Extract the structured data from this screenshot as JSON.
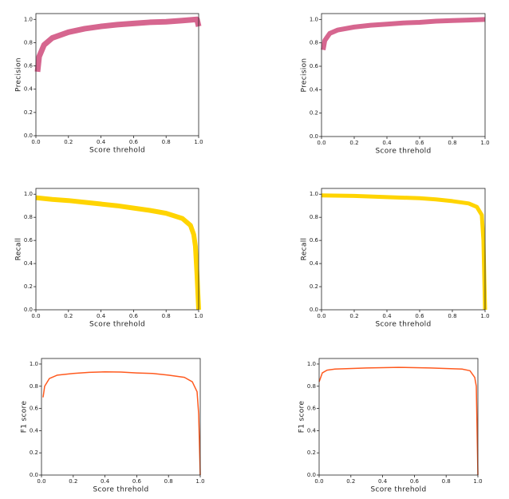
{
  "chart_data": [
    {
      "type": "line",
      "xlabel": "Score threhold",
      "ylabel": "Precision",
      "color": "#d6668f",
      "x": [
        0.01,
        0.02,
        0.05,
        0.1,
        0.2,
        0.3,
        0.4,
        0.5,
        0.6,
        0.7,
        0.8,
        0.9,
        0.99,
        1.0
      ],
      "values": [
        0.55,
        0.68,
        0.78,
        0.84,
        0.89,
        0.92,
        0.94,
        0.955,
        0.965,
        0.975,
        0.98,
        0.99,
        1.0,
        0.94
      ],
      "xlim": [
        0,
        1
      ],
      "ylim": [
        0,
        1.05
      ],
      "xticks": [
        {
          "value": 0,
          "label": "0.0"
        },
        0.2,
        0.4,
        0.6,
        0.8,
        {
          "value": 1,
          "label": "1.0"
        }
      ],
      "yticks": [
        {
          "value": 0,
          "label": "0.0"
        },
        0.2,
        0.4,
        0.6,
        0.8,
        {
          "value": 1,
          "label": "1.0"
        }
      ]
    },
    {
      "type": "line",
      "xlabel": "Score threhold",
      "ylabel": "Precision",
      "color": "#d6668f",
      "x": [
        0.01,
        0.02,
        0.05,
        0.1,
        0.2,
        0.3,
        0.4,
        0.5,
        0.6,
        0.7,
        0.8,
        0.9,
        1.0
      ],
      "values": [
        0.74,
        0.82,
        0.88,
        0.91,
        0.935,
        0.95,
        0.96,
        0.97,
        0.975,
        0.985,
        0.99,
        0.995,
        1.0
      ],
      "xlim": [
        0,
        1
      ],
      "ylim": [
        0,
        1.05
      ],
      "xticks": [
        {
          "value": 0,
          "label": "0.0"
        },
        0.2,
        0.4,
        0.6,
        0.8,
        {
          "value": 1,
          "label": "1.0"
        }
      ],
      "yticks": [
        {
          "value": 0,
          "label": "0.0"
        },
        0.2,
        0.4,
        0.6,
        0.8,
        {
          "value": 1,
          "label": "1.0"
        }
      ]
    },
    {
      "type": "line",
      "xlabel": "Score threhold",
      "ylabel": "Recall",
      "color": "#ffd400",
      "x": [
        0,
        0.1,
        0.2,
        0.3,
        0.4,
        0.5,
        0.6,
        0.7,
        0.8,
        0.9,
        0.95,
        0.97,
        0.98,
        0.99,
        1.0
      ],
      "values": [
        0.97,
        0.955,
        0.945,
        0.93,
        0.915,
        0.9,
        0.88,
        0.86,
        0.835,
        0.79,
        0.73,
        0.65,
        0.55,
        0.3,
        0
      ],
      "xlim": [
        0,
        1
      ],
      "ylim": [
        0,
        1.05
      ],
      "xticks": [
        {
          "value": 0,
          "label": "0.0"
        },
        0.2,
        0.4,
        0.6,
        0.8,
        {
          "value": 1,
          "label": "1.0"
        }
      ],
      "yticks": [
        {
          "value": 0,
          "label": "0.0"
        },
        0.2,
        0.4,
        0.6,
        0.8,
        {
          "value": 1,
          "label": "1.0"
        }
      ]
    },
    {
      "type": "line",
      "xlabel": "Score threhold",
      "ylabel": "Recall",
      "color": "#ffd400",
      "x": [
        0,
        0.2,
        0.4,
        0.6,
        0.7,
        0.8,
        0.9,
        0.95,
        0.98,
        0.99,
        1.0
      ],
      "values": [
        0.99,
        0.985,
        0.975,
        0.965,
        0.955,
        0.94,
        0.92,
        0.89,
        0.82,
        0.6,
        0
      ],
      "xlim": [
        0,
        1
      ],
      "ylim": [
        0,
        1.05
      ],
      "xticks": [
        {
          "value": 0,
          "label": "0.0"
        },
        0.2,
        0.4,
        0.6,
        0.8,
        {
          "value": 1,
          "label": "1.0"
        }
      ],
      "yticks": [
        {
          "value": 0,
          "label": "0.0"
        },
        0.2,
        0.4,
        0.6,
        0.8,
        {
          "value": 1,
          "label": "1.0"
        }
      ]
    },
    {
      "type": "line",
      "xlabel": "Score threhold",
      "ylabel": "F1 score",
      "color": "#ff5a1f",
      "x": [
        0.01,
        0.02,
        0.05,
        0.1,
        0.2,
        0.3,
        0.4,
        0.5,
        0.6,
        0.7,
        0.8,
        0.9,
        0.95,
        0.98,
        0.99,
        1.0
      ],
      "values": [
        0.7,
        0.8,
        0.87,
        0.9,
        0.915,
        0.925,
        0.93,
        0.928,
        0.92,
        0.915,
        0.9,
        0.88,
        0.84,
        0.75,
        0.55,
        0
      ],
      "xlim": [
        0,
        1
      ],
      "ylim": [
        0,
        1.05
      ],
      "xticks": [
        {
          "value": 0,
          "label": "0.0"
        },
        0.2,
        0.4,
        0.6,
        0.8,
        {
          "value": 1,
          "label": "1.0"
        }
      ],
      "yticks": [
        {
          "value": 0,
          "label": "0.0"
        },
        0.2,
        0.4,
        0.6,
        0.8,
        {
          "value": 1,
          "label": "1.0"
        }
      ]
    },
    {
      "type": "line",
      "xlabel": "Score threhold",
      "ylabel": "F1 score",
      "color": "#ff5a1f",
      "x": [
        0,
        0.02,
        0.05,
        0.1,
        0.3,
        0.5,
        0.7,
        0.9,
        0.95,
        0.98,
        0.99,
        1.0
      ],
      "values": [
        0.84,
        0.92,
        0.945,
        0.955,
        0.965,
        0.97,
        0.965,
        0.955,
        0.94,
        0.88,
        0.8,
        0
      ],
      "xlim": [
        0,
        1
      ],
      "ylim": [
        0,
        1.05
      ],
      "xticks": [
        {
          "value": 0,
          "label": "0.0"
        },
        0.2,
        0.4,
        0.6,
        0.8,
        {
          "value": 1,
          "label": "1.0"
        }
      ],
      "yticks": [
        {
          "value": 0,
          "label": "0.0"
        },
        0.2,
        0.4,
        0.6,
        0.8,
        {
          "value": 1,
          "label": "1.0"
        }
      ]
    }
  ]
}
